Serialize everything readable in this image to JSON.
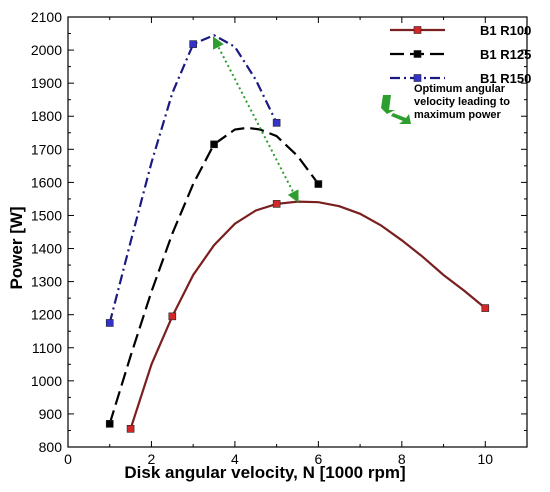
{
  "chart_data": {
    "type": "line",
    "title": "",
    "xlabel": "Disk angular velocity, N [1000 rpm]",
    "ylabel": "Power [W]",
    "xlim": [
      0,
      11
    ],
    "ylim": [
      800,
      2100
    ],
    "xticks": [
      0,
      2,
      4,
      6,
      8,
      10
    ],
    "yticks": [
      800,
      900,
      1000,
      1100,
      1200,
      1300,
      1400,
      1500,
      1600,
      1700,
      1800,
      1900,
      2000,
      2100
    ],
    "grid": false,
    "legend_position": "top-right",
    "series": [
      {
        "name": "B1 R100",
        "color": "#7a1f1f",
        "marker_color": "#d62728",
        "line_style": "solid",
        "points": [
          [
            1.5,
            855
          ],
          [
            2.5,
            1195
          ],
          [
            5,
            1535
          ],
          [
            10,
            1220
          ]
        ],
        "curve": [
          [
            1.5,
            855
          ],
          [
            2.0,
            1050
          ],
          [
            2.5,
            1195
          ],
          [
            3.0,
            1320
          ],
          [
            3.5,
            1410
          ],
          [
            4.0,
            1475
          ],
          [
            4.5,
            1515
          ],
          [
            5.0,
            1535
          ],
          [
            5.5,
            1542
          ],
          [
            6.0,
            1540
          ],
          [
            6.5,
            1528
          ],
          [
            7.0,
            1505
          ],
          [
            7.5,
            1470
          ],
          [
            8.0,
            1425
          ],
          [
            8.5,
            1375
          ],
          [
            9.0,
            1320
          ],
          [
            9.5,
            1272
          ],
          [
            10.0,
            1220
          ]
        ]
      },
      {
        "name": "B1 R125",
        "color": "#000000",
        "marker_color": "#000000",
        "line_style": "dashed",
        "points": [
          [
            1,
            870
          ],
          [
            3.5,
            1715
          ],
          [
            6,
            1595
          ]
        ],
        "curve": [
          [
            1.0,
            870
          ],
          [
            1.5,
            1075
          ],
          [
            2.0,
            1270
          ],
          [
            2.5,
            1445
          ],
          [
            3.0,
            1595
          ],
          [
            3.5,
            1715
          ],
          [
            4.0,
            1760
          ],
          [
            4.3,
            1765
          ],
          [
            4.6,
            1760
          ],
          [
            5.0,
            1740
          ],
          [
            5.5,
            1680
          ],
          [
            6.0,
            1595
          ]
        ]
      },
      {
        "name": "B1 R150",
        "color": "#1a1a80",
        "marker_color": "#3333cc",
        "line_style": "dashdot",
        "points": [
          [
            1,
            1175
          ],
          [
            3,
            2018
          ],
          [
            5,
            1780
          ]
        ],
        "curve": [
          [
            1.0,
            1175
          ],
          [
            1.5,
            1420
          ],
          [
            2.0,
            1660
          ],
          [
            2.5,
            1870
          ],
          [
            3.0,
            2018
          ],
          [
            3.5,
            2045
          ],
          [
            4.0,
            2010
          ],
          [
            4.5,
            1910
          ],
          [
            5.0,
            1780
          ]
        ]
      }
    ],
    "annotation": {
      "text_lines": [
        "Optimum angular",
        "velocity leading to",
        "maximum power"
      ],
      "arrow_color": "#2e9e2e",
      "arrow_from": [
        3.5,
        2035
      ],
      "arrow_to": [
        5.5,
        1545
      ]
    }
  }
}
